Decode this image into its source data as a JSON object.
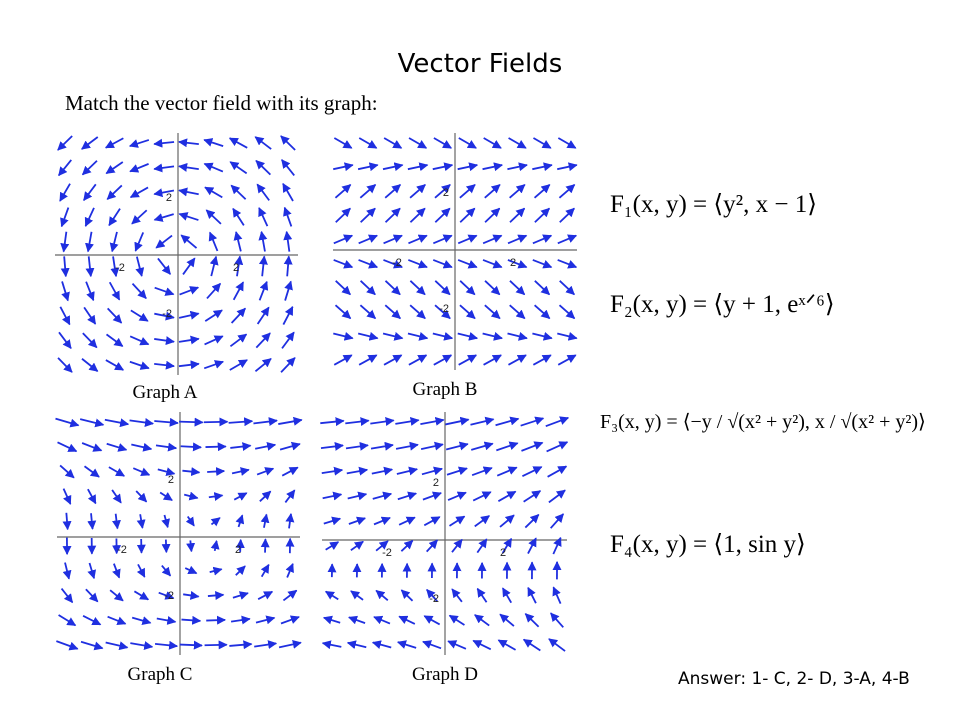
{
  "title": "Vector Fields",
  "instruction": "Match the vector field with its graph:",
  "graphs": [
    {
      "label": "Graph A",
      "x_ticks": [
        "-2",
        "2"
      ],
      "y_ticks": [
        "2",
        "-2"
      ]
    },
    {
      "label": "Graph B",
      "x_ticks": [
        "-2",
        "2"
      ],
      "y_ticks": [
        "2",
        "-2"
      ]
    },
    {
      "label": "Graph C",
      "x_ticks": [
        "-2",
        "2"
      ],
      "y_ticks": [
        "2",
        "-2"
      ]
    },
    {
      "label": "Graph D",
      "x_ticks": [
        "-2",
        "2"
      ],
      "y_ticks": [
        "2",
        "-2"
      ]
    }
  ],
  "equations": [
    "F₁(x, y) = ⟨y², x − 1⟩",
    "F₂(x, y) = ⟨y + 1, eˣᐟ⁶⟩",
    "F₃(x, y) = ⟨−y / √(x² + y²), x / √(x² + y²)⟩",
    "F₄(x, y) = ⟨1, sin y⟩"
  ],
  "answer": "Answer: 1- C, 2- D, 3-A, 4-B"
}
